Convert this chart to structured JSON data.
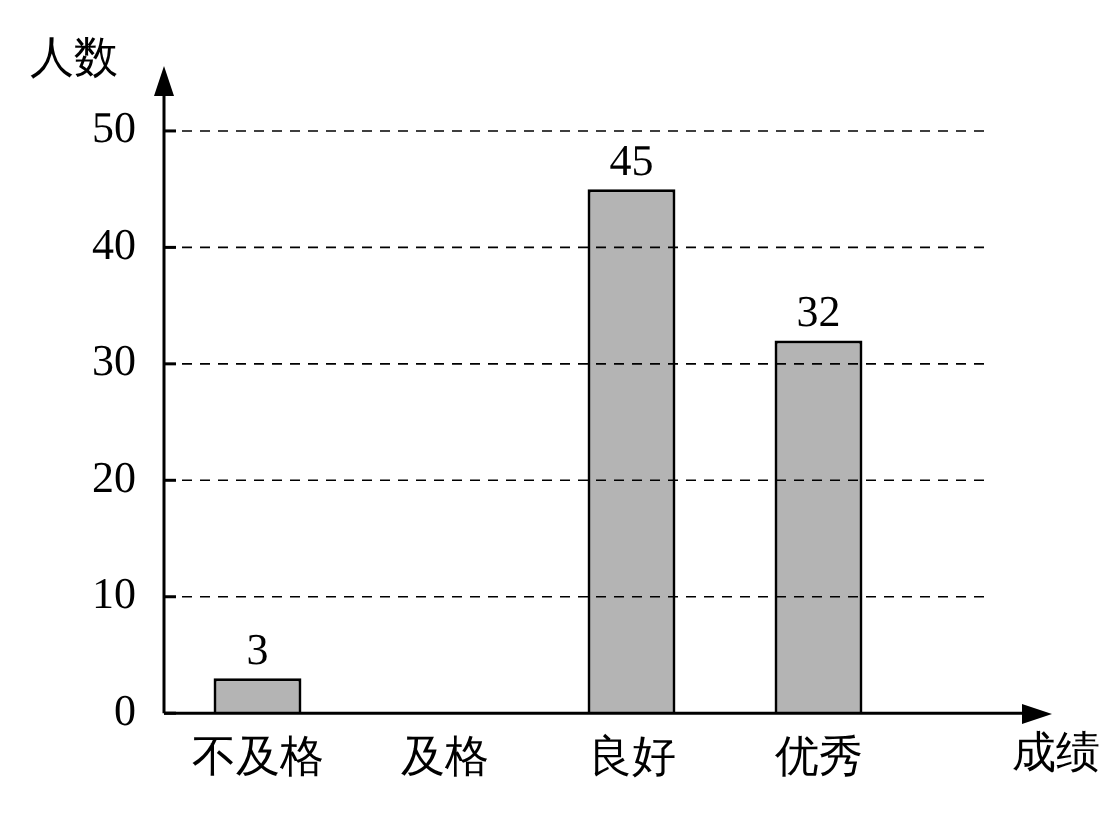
{
  "chart_data": {
    "type": "bar",
    "xlabel": "成绩",
    "ylabel": "人数",
    "categories": [
      "不及格",
      "及格",
      "良好",
      "优秀"
    ],
    "values": [
      3,
      null,
      45,
      32
    ],
    "color": "#b4b4b4",
    "ylim": [
      0,
      53
    ],
    "yticks": [
      0,
      10,
      20,
      30,
      40,
      50
    ],
    "grid": "y",
    "data_labels": true,
    "legend": false
  }
}
